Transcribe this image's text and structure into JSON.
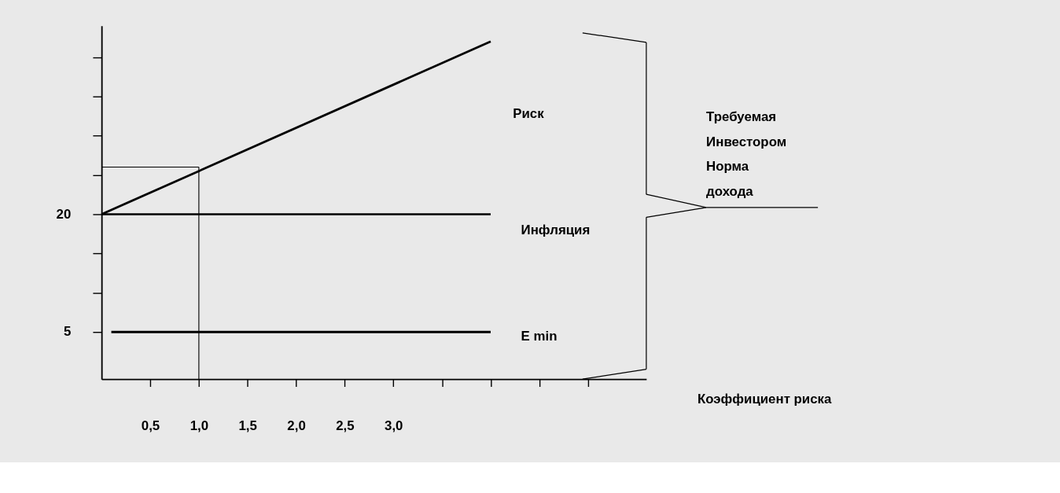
{
  "chart_data": {
    "type": "line",
    "xlabel": "Коэффициент риска",
    "xlim": [
      0,
      5.6
    ],
    "ylim": [
      -1,
      44
    ],
    "xticks": [
      {
        "value": 0.5,
        "label": "0,5"
      },
      {
        "value": 1.0,
        "label": "1,0"
      },
      {
        "value": 1.5,
        "label": "1,5"
      },
      {
        "value": 2.0,
        "label": "2,0"
      },
      {
        "value": 2.5,
        "label": "2,5"
      },
      {
        "value": 3.0,
        "label": "3,0"
      },
      {
        "value": 3.5,
        "label": null
      },
      {
        "value": 4.0,
        "label": null
      },
      {
        "value": 4.5,
        "label": null
      },
      {
        "value": 5.0,
        "label": null
      }
    ],
    "yticks": [
      {
        "value": 5,
        "label": "5"
      },
      {
        "value": 10,
        "label": null
      },
      {
        "value": 15,
        "label": null
      },
      {
        "value": 20,
        "label": "20"
      },
      {
        "value": 25,
        "label": null
      },
      {
        "value": 30,
        "label": null
      },
      {
        "value": 35,
        "label": null
      },
      {
        "value": 40,
        "label": null
      }
    ],
    "series": [
      {
        "color": "#000000",
        "x": [
          0,
          4.0
        ],
        "values": [
          20,
          42
        ]
      },
      {
        "color": "#000000",
        "x": [
          0,
          4.0
        ],
        "values": [
          20,
          20
        ]
      },
      {
        "color": "#000000",
        "x": [
          0.1,
          4.0
        ],
        "values": [
          5,
          5
        ]
      }
    ],
    "ref_lines": [
      {
        "axis": "x",
        "value": 1.0
      },
      {
        "axis": "y",
        "value": 26
      }
    ],
    "annotations": [
      "Риск",
      "Инфляция",
      "E min",
      "Требуемая Инвестором Норма дохода"
    ],
    "grid": false,
    "marker": "none",
    "line_style": "solid"
  }
}
